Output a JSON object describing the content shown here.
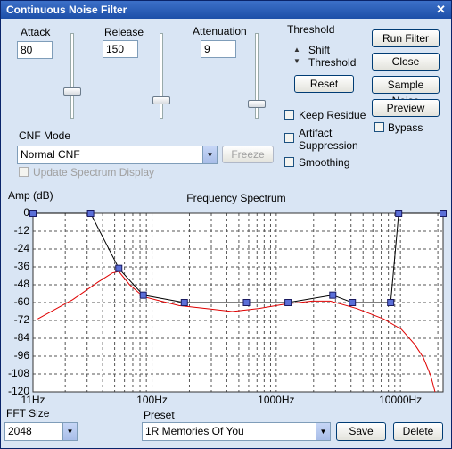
{
  "window": {
    "title": "Continuous Noise Filter"
  },
  "controls": {
    "attack": {
      "label": "Attack",
      "value": 80
    },
    "release": {
      "label": "Release",
      "value": 150
    },
    "attenuation": {
      "label": "Attenuation",
      "value": 9
    }
  },
  "threshold": {
    "label": "Threshold",
    "spinner_label": [
      "Shift",
      "Threshold"
    ],
    "reset": "Reset"
  },
  "buttons": [
    "Run Filter",
    "Close",
    "Sample Noise",
    "Preview"
  ],
  "checkboxes": {
    "bypass": "Bypass",
    "keep_residue": "Keep Residue",
    "artifact_suppression": [
      "Artifact",
      "Suppression"
    ],
    "smoothing": "Smoothing",
    "update_spectrum_display": "Update Spectrum Display"
  },
  "cnf_mode": {
    "label": "CNF Mode",
    "value": "Normal CNF",
    "freeze": "Freeze"
  },
  "fft_size": {
    "label": "FFT Size",
    "value": "2048"
  },
  "preset": {
    "label": "Preset",
    "value": "1R Memories Of You",
    "save": "Save",
    "delete": "Delete"
  },
  "chart_data": {
    "type": "line",
    "title": "Frequency Spectrum",
    "y_label": "Amp (dB)",
    "xscale": "log",
    "xlim": [
      11,
      22050
    ],
    "ylim": [
      -120,
      0
    ],
    "grid": true,
    "xticks": [
      {
        "value": 11,
        "label": "11Hz"
      },
      {
        "value": 100,
        "label": "100Hz"
      },
      {
        "value": 1000,
        "label": "1000Hz"
      },
      {
        "value": 10000,
        "label": "10000Hz"
      }
    ],
    "yticks": [
      0,
      -12,
      -24,
      -36,
      -48,
      -60,
      -72,
      -84,
      -96,
      -108,
      -120
    ],
    "series": [
      {
        "color": "#e00000",
        "markers": false,
        "x": [
          12,
          23,
          37,
          48,
          54,
          66,
          85,
          118,
          165,
          270,
          442,
          726,
          1190,
          1950,
          2720,
          4460,
          7310,
          10200,
          13000,
          15300,
          17500,
          19000
        ],
        "values": [
          -71,
          -58,
          -46,
          -40,
          -39,
          -48,
          -56,
          -59,
          -62,
          -64,
          -66,
          -64,
          -61,
          -59,
          -59,
          -64,
          -71,
          -78,
          -88,
          -97,
          -109,
          -120
        ]
      },
      {
        "color": "#000000",
        "markers": true,
        "marker_color": "#5b6fd8",
        "x": [
          11,
          32,
          54,
          85,
          182,
          576,
          1245,
          2853,
          4100,
          8340,
          9680,
          22050
        ],
        "values": [
          0,
          0,
          -37,
          -55,
          -60,
          -60,
          -60,
          -55,
          -60,
          -60,
          0,
          0
        ]
      }
    ]
  }
}
